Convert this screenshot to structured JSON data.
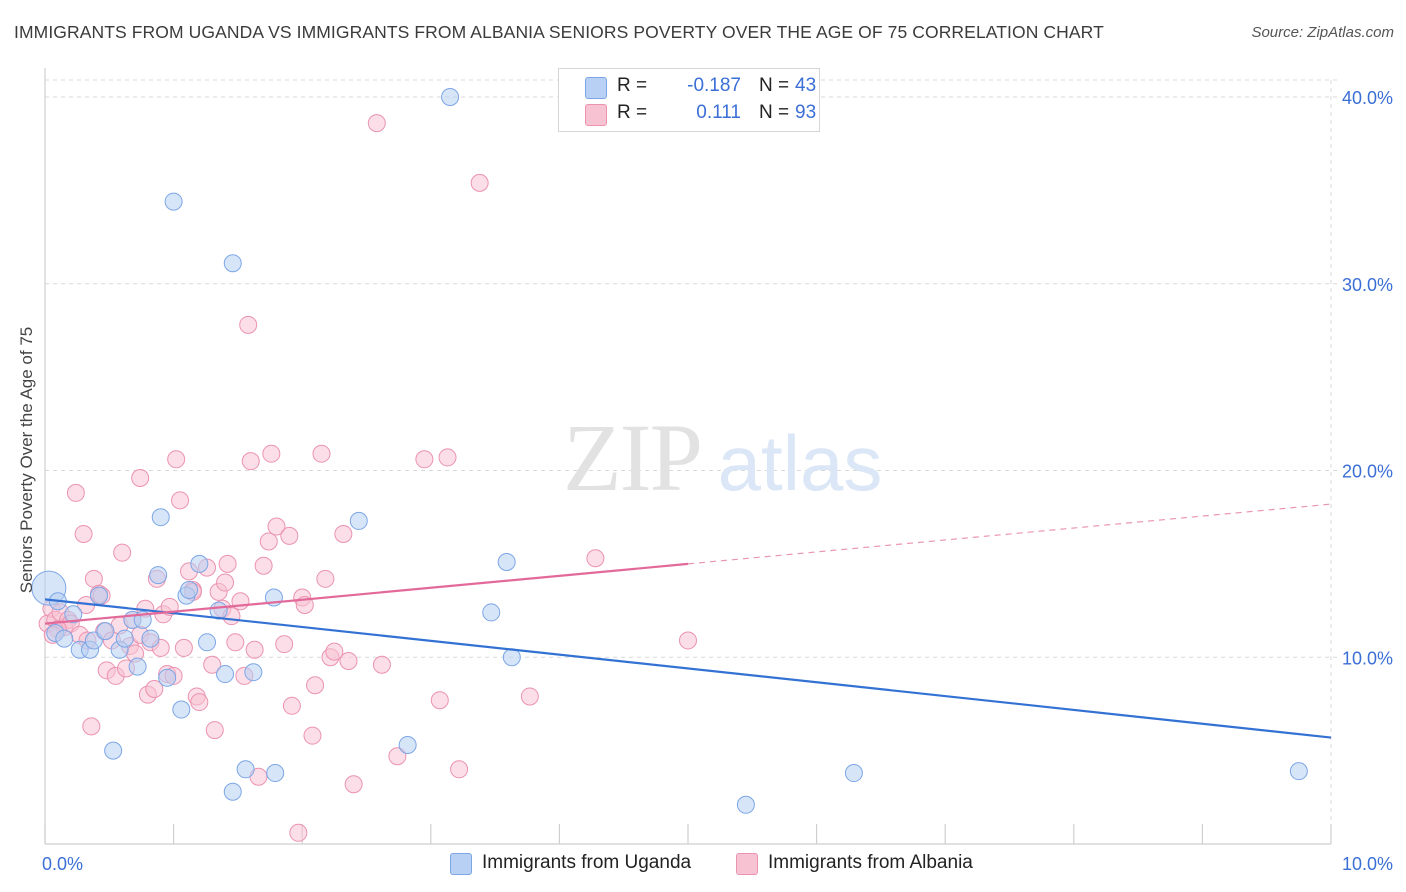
{
  "title": "IMMIGRANTS FROM UGANDA VS IMMIGRANTS FROM ALBANIA SENIORS POVERTY OVER THE AGE OF 75 CORRELATION CHART",
  "source": "Source: ZipAtlas.com",
  "watermark": {
    "zip": "ZIP",
    "atlas": "atlas"
  },
  "legend_top": {
    "uganda": {
      "r_label": "R =",
      "r_value": "-0.187",
      "n_label": "N =",
      "n_value": "43"
    },
    "albania": {
      "r_label": "R =",
      "r_value": "0.111",
      "n_label": "N =",
      "n_value": "93"
    }
  },
  "colors": {
    "uganda_fill": "#b7d0f3",
    "uganda_stroke": "#7ca6e6",
    "uganda_line": "#3372d4",
    "albania_fill": "#f7c3d3",
    "albania_stroke": "#eb93b1",
    "albania_line": "#e2699a",
    "tick_label": "#3b6fd6",
    "grid": "#d9d9d9"
  },
  "chart_data": {
    "type": "scatter",
    "title": "IMMIGRANTS FROM UGANDA VS IMMIGRANTS FROM ALBANIA SENIORS POVERTY OVER THE AGE OF 75 CORRELATION CHART",
    "xlabel": "",
    "ylabel": "Seniors Poverty Over the Age of 75",
    "xlim": [
      0,
      10
    ],
    "ylim": [
      0,
      40
    ],
    "x_tick_labels": [
      {
        "value": 0,
        "label": "0.0%"
      },
      {
        "value": 10,
        "label": "10.0%"
      }
    ],
    "y_tick_labels": [
      {
        "value": 10,
        "label": "10.0%"
      },
      {
        "value": 20,
        "label": "20.0%"
      },
      {
        "value": 30,
        "label": "30.0%"
      },
      {
        "value": 40,
        "label": "40.0%"
      }
    ],
    "grid": true,
    "legend_position": "bottom",
    "series": [
      {
        "name": "Immigrants from Uganda",
        "r": -0.187,
        "n": 43,
        "trend": {
          "x0": 0,
          "y0": 13.1,
          "x1": 10,
          "y1": 5.7,
          "solid_until": 10
        },
        "points": [
          [
            0.03,
            13.7
          ],
          [
            0.08,
            11.3
          ],
          [
            0.15,
            11.0
          ],
          [
            0.22,
            12.3
          ],
          [
            0.27,
            10.4
          ],
          [
            0.35,
            10.4
          ],
          [
            0.38,
            10.9
          ],
          [
            0.42,
            13.3
          ],
          [
            0.47,
            11.4
          ],
          [
            0.53,
            5.0
          ],
          [
            0.58,
            10.4
          ],
          [
            0.62,
            11.0
          ],
          [
            0.68,
            12.0
          ],
          [
            0.72,
            9.5
          ],
          [
            0.76,
            12.0
          ],
          [
            0.82,
            11.0
          ],
          [
            0.88,
            14.4
          ],
          [
            0.9,
            17.5
          ],
          [
            0.95,
            8.9
          ],
          [
            1.0,
            34.4
          ],
          [
            1.06,
            7.2
          ],
          [
            1.1,
            13.3
          ],
          [
            1.12,
            13.6
          ],
          [
            1.2,
            15.0
          ],
          [
            1.26,
            10.8
          ],
          [
            1.35,
            12.5
          ],
          [
            1.4,
            9.1
          ],
          [
            1.46,
            31.1
          ],
          [
            1.56,
            4.0
          ],
          [
            1.62,
            9.2
          ],
          [
            1.78,
            13.2
          ],
          [
            1.79,
            3.8
          ],
          [
            1.46,
            2.8
          ],
          [
            2.44,
            17.3
          ],
          [
            2.82,
            5.3
          ],
          [
            3.15,
            40.0
          ],
          [
            3.47,
            12.4
          ],
          [
            3.59,
            15.1
          ],
          [
            3.63,
            10.0
          ],
          [
            5.45,
            2.1
          ],
          [
            6.29,
            3.8
          ],
          [
            9.75,
            3.9
          ],
          [
            0.1,
            13.0
          ]
        ]
      },
      {
        "name": "Immigrants from Albania",
        "r": 0.111,
        "n": 93,
        "trend": {
          "x0": 0,
          "y0": 11.8,
          "x1": 10,
          "y1": 18.2,
          "solid_until": 5.0
        },
        "points": [
          [
            0.02,
            11.8
          ],
          [
            0.05,
            12.6
          ],
          [
            0.08,
            12.0
          ],
          [
            0.12,
            12.4
          ],
          [
            0.15,
            11.6
          ],
          [
            0.18,
            12.0
          ],
          [
            0.2,
            11.8
          ],
          [
            0.24,
            18.8
          ],
          [
            0.27,
            11.2
          ],
          [
            0.3,
            16.6
          ],
          [
            0.33,
            10.9
          ],
          [
            0.36,
            6.3
          ],
          [
            0.38,
            14.2
          ],
          [
            0.42,
            13.4
          ],
          [
            0.46,
            11.4
          ],
          [
            0.48,
            9.3
          ],
          [
            0.52,
            10.9
          ],
          [
            0.55,
            9.0
          ],
          [
            0.58,
            11.7
          ],
          [
            0.6,
            15.6
          ],
          [
            0.63,
            9.4
          ],
          [
            0.66,
            10.6
          ],
          [
            0.68,
            12.0
          ],
          [
            0.7,
            10.2
          ],
          [
            0.74,
            11.2
          ],
          [
            0.74,
            19.6
          ],
          [
            0.78,
            12.6
          ],
          [
            0.8,
            8.0
          ],
          [
            0.82,
            10.8
          ],
          [
            0.85,
            8.3
          ],
          [
            0.87,
            14.2
          ],
          [
            0.9,
            10.5
          ],
          [
            0.92,
            12.3
          ],
          [
            0.95,
            9.1
          ],
          [
            0.97,
            12.7
          ],
          [
            1.0,
            9.0
          ],
          [
            1.02,
            20.6
          ],
          [
            1.05,
            18.4
          ],
          [
            1.08,
            10.5
          ],
          [
            1.12,
            14.6
          ],
          [
            1.15,
            13.6
          ],
          [
            1.18,
            7.9
          ],
          [
            1.2,
            7.6
          ],
          [
            1.26,
            14.8
          ],
          [
            1.3,
            9.6
          ],
          [
            1.32,
            6.1
          ],
          [
            1.35,
            13.5
          ],
          [
            1.38,
            12.6
          ],
          [
            1.4,
            14.0
          ],
          [
            1.42,
            15.0
          ],
          [
            1.45,
            12.2
          ],
          [
            1.48,
            10.8
          ],
          [
            1.52,
            13.0
          ],
          [
            1.55,
            9.0
          ],
          [
            1.58,
            27.8
          ],
          [
            1.6,
            20.5
          ],
          [
            1.63,
            10.4
          ],
          [
            1.66,
            3.6
          ],
          [
            1.7,
            14.9
          ],
          [
            1.74,
            16.2
          ],
          [
            1.76,
            20.9
          ],
          [
            1.8,
            17.0
          ],
          [
            1.86,
            10.7
          ],
          [
            1.9,
            16.5
          ],
          [
            1.92,
            7.4
          ],
          [
            1.97,
            0.6
          ],
          [
            2.0,
            13.2
          ],
          [
            2.02,
            12.8
          ],
          [
            2.08,
            5.8
          ],
          [
            2.1,
            8.5
          ],
          [
            2.15,
            20.9
          ],
          [
            2.18,
            14.2
          ],
          [
            2.22,
            10.0
          ],
          [
            2.25,
            10.3
          ],
          [
            2.32,
            16.6
          ],
          [
            2.36,
            9.8
          ],
          [
            2.4,
            3.2
          ],
          [
            2.58,
            38.6
          ],
          [
            2.62,
            9.6
          ],
          [
            2.74,
            4.7
          ],
          [
            2.95,
            20.6
          ],
          [
            3.07,
            7.7
          ],
          [
            3.13,
            20.7
          ],
          [
            3.22,
            4.0
          ],
          [
            3.38,
            35.4
          ],
          [
            3.77,
            7.9
          ],
          [
            4.28,
            15.3
          ],
          [
            5.0,
            10.9
          ],
          [
            0.1,
            11.5
          ],
          [
            1.15,
            13.5
          ],
          [
            0.06,
            11.2
          ],
          [
            0.44,
            13.3
          ],
          [
            0.32,
            12.8
          ]
        ]
      }
    ]
  },
  "bottom_legend": {
    "uganda": "Immigrants from Uganda",
    "albania": "Immigrants from Albania"
  }
}
